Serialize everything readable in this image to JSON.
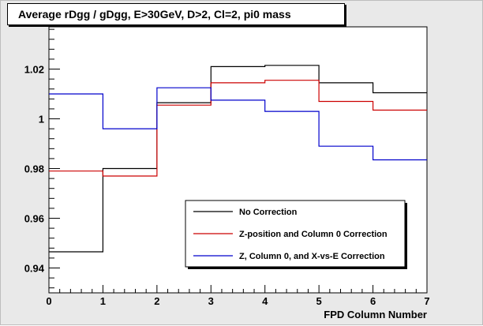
{
  "chart_data": {
    "type": "line",
    "title": "Average rDgg / gDgg, E>30GeV, D>2, Cl=2, pi0 mass",
    "xlabel": "FPD Column Number",
    "ylabel": "",
    "xlim": [
      0,
      7
    ],
    "ylim": [
      0.93,
      1.037
    ],
    "x_ticks": [
      0,
      1,
      2,
      3,
      4,
      5,
      6,
      7
    ],
    "x_tick_labels": [
      "0",
      "1",
      "2",
      "3",
      "4",
      "5",
      "6",
      "7"
    ],
    "y_ticks": [
      0.94,
      0.96,
      0.98,
      1.0,
      1.02
    ],
    "y_tick_labels": [
      "0.94",
      "0.96",
      "0.98",
      "1",
      "1.02"
    ],
    "step_histogram": true,
    "bin_edges": [
      0,
      1,
      2,
      3,
      4,
      5,
      6,
      7
    ],
    "grid": false,
    "legend_position": "bottom-right",
    "series": [
      {
        "name": "No Correction",
        "color": "#000000",
        "values": [
          0.9465,
          0.98,
          1.0065,
          1.021,
          1.0215,
          1.0145,
          1.0105
        ]
      },
      {
        "name": "Z-position and Column 0 Correction",
        "color": "#cc0000",
        "values": [
          0.979,
          0.977,
          1.0055,
          1.0145,
          1.0155,
          1.007,
          1.0035
        ]
      },
      {
        "name": "Z, Column 0, and X-vs-E Correction",
        "color": "#0000cc",
        "values": [
          1.01,
          0.996,
          1.0125,
          1.0075,
          1.003,
          0.989,
          0.9835
        ]
      }
    ]
  }
}
